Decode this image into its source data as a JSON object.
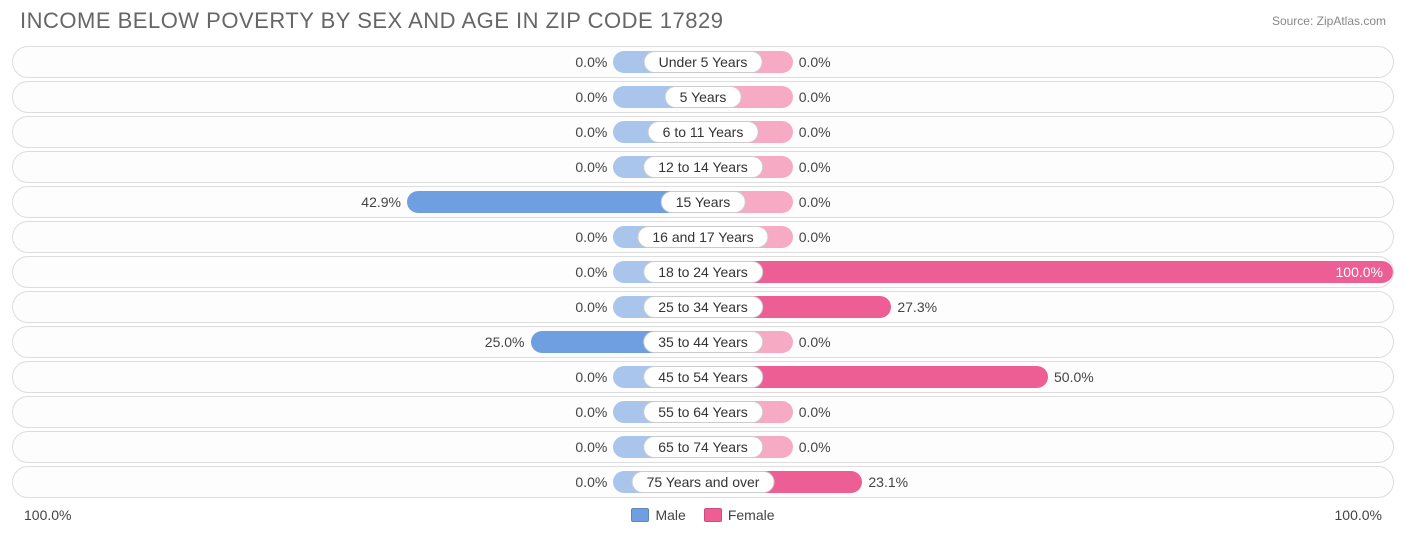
{
  "title": "INCOME BELOW POVERTY BY SEX AND AGE IN ZIP CODE 17829",
  "source": "Source: ZipAtlas.com",
  "axis_max_label": "100.0%",
  "legend": {
    "male": "Male",
    "female": "Female"
  },
  "colors": {
    "male_light": "#a9c5ec",
    "male_dark": "#6f9fe0",
    "female_light": "#f6aac4",
    "female_dark": "#ed5e94",
    "row_border": "#dddddd",
    "text": "#444444",
    "title": "#666666"
  },
  "chart": {
    "type": "diverging-bar",
    "max_percent": 100.0,
    "min_bar_percent": 13.0,
    "rows": [
      {
        "label": "Under 5 Years",
        "male": 0.0,
        "female": 0.0
      },
      {
        "label": "5 Years",
        "male": 0.0,
        "female": 0.0
      },
      {
        "label": "6 to 11 Years",
        "male": 0.0,
        "female": 0.0
      },
      {
        "label": "12 to 14 Years",
        "male": 0.0,
        "female": 0.0
      },
      {
        "label": "15 Years",
        "male": 42.9,
        "female": 0.0
      },
      {
        "label": "16 and 17 Years",
        "male": 0.0,
        "female": 0.0
      },
      {
        "label": "18 to 24 Years",
        "male": 0.0,
        "female": 100.0
      },
      {
        "label": "25 to 34 Years",
        "male": 0.0,
        "female": 27.3
      },
      {
        "label": "35 to 44 Years",
        "male": 25.0,
        "female": 0.0
      },
      {
        "label": "45 to 54 Years",
        "male": 0.0,
        "female": 50.0
      },
      {
        "label": "55 to 64 Years",
        "male": 0.0,
        "female": 0.0
      },
      {
        "label": "65 to 74 Years",
        "male": 0.0,
        "female": 0.0
      },
      {
        "label": "75 Years and over",
        "male": 0.0,
        "female": 23.1
      }
    ]
  }
}
